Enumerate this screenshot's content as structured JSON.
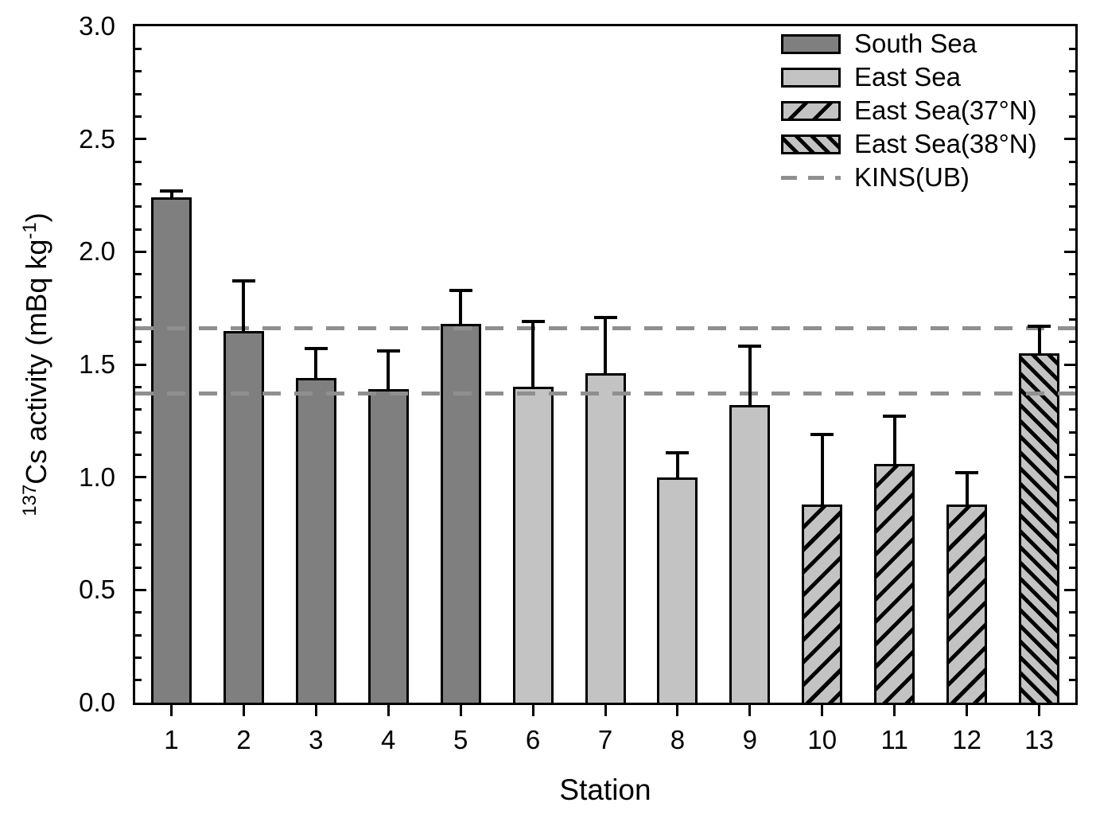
{
  "chart_data": {
    "type": "bar",
    "title": "",
    "xlabel": "Station",
    "ylabel": {
      "sup1": "137",
      "text1": "Cs activity (mBq kg",
      "sup2": "-1",
      "text2": ")"
    },
    "ylim": [
      0,
      3
    ],
    "ytick_step_major": 0.5,
    "ytick_step_minor": 0.1,
    "ytick_labels": [
      "0.0",
      "0.5",
      "1.0",
      "1.5",
      "2.0",
      "2.5",
      "3.0"
    ],
    "categories": [
      "1",
      "2",
      "3",
      "4",
      "5",
      "6",
      "7",
      "8",
      "9",
      "10",
      "11",
      "12",
      "13"
    ],
    "series_groups": [
      {
        "id": "south",
        "label": "South Sea",
        "fill": "#7f7f7f",
        "hatch": "none"
      },
      {
        "id": "east",
        "label": "East Sea",
        "fill": "#c3c3c3",
        "hatch": "none"
      },
      {
        "id": "east37",
        "label": "East Sea(37°N)",
        "fill": "#c3c3c3",
        "hatch": "forward-diagonal"
      },
      {
        "id": "east38",
        "label": "East Sea(38°N)",
        "fill": "#c3c3c3",
        "hatch": "back-diagonal-dense"
      }
    ],
    "bars": [
      {
        "station": "1",
        "group": "south",
        "value": 2.24,
        "error_plus": 0.03
      },
      {
        "station": "2",
        "group": "south",
        "value": 1.65,
        "error_plus": 0.22
      },
      {
        "station": "3",
        "group": "south",
        "value": 1.44,
        "error_plus": 0.13
      },
      {
        "station": "4",
        "group": "south",
        "value": 1.39,
        "error_plus": 0.17
      },
      {
        "station": "5",
        "group": "south",
        "value": 1.68,
        "error_plus": 0.15
      },
      {
        "station": "6",
        "group": "east",
        "value": 1.4,
        "error_plus": 0.29
      },
      {
        "station": "7",
        "group": "east",
        "value": 1.46,
        "error_plus": 0.25
      },
      {
        "station": "8",
        "group": "east",
        "value": 1.0,
        "error_plus": 0.11
      },
      {
        "station": "9",
        "group": "east",
        "value": 1.32,
        "error_plus": 0.26
      },
      {
        "station": "10",
        "group": "east37",
        "value": 0.88,
        "error_plus": 0.31
      },
      {
        "station": "11",
        "group": "east37",
        "value": 1.06,
        "error_plus": 0.21
      },
      {
        "station": "12",
        "group": "east37",
        "value": 0.88,
        "error_plus": 0.14
      },
      {
        "station": "13",
        "group": "east38",
        "value": 1.55,
        "error_plus": 0.12
      }
    ],
    "reference_lines": {
      "label": "KINS(UB)",
      "values": [
        1.66,
        1.37
      ],
      "color": "#8f8f8f",
      "style": "dashed"
    },
    "legend": {
      "position": "top-right",
      "entries": [
        "South Sea",
        "East Sea",
        "East Sea(37°N)",
        "East Sea(38°N)",
        "KINS(UB)"
      ]
    },
    "colors": {
      "axis": "#000000",
      "bar_border": "#000000",
      "error_bar": "#000000",
      "background": "#ffffff"
    }
  }
}
